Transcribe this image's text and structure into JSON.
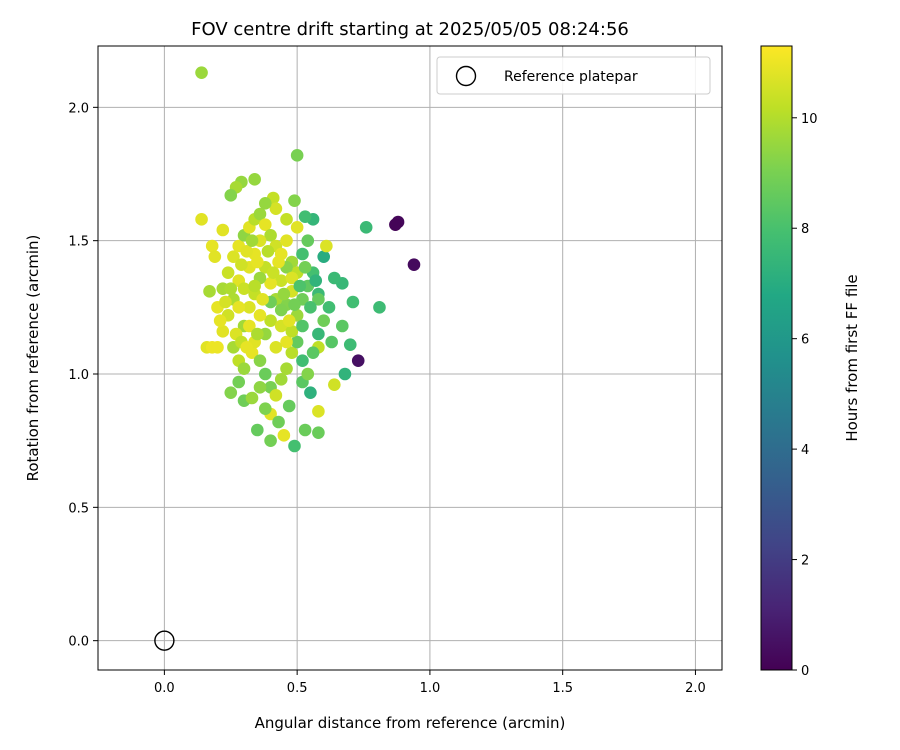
{
  "chart_data": {
    "type": "scatter",
    "title": "FOV centre drift starting at 2025/05/05 08:24:56",
    "xlabel": "Angular distance from reference (arcmin)",
    "ylabel": "Rotation from reference (arcmin)",
    "xlim": [
      -0.25,
      2.1
    ],
    "ylim": [
      -0.11,
      2.23
    ],
    "xticks": [
      "0.0",
      "0.5",
      "1.0",
      "1.5",
      "2.0"
    ],
    "yticks": [
      "0.0",
      "0.5",
      "1.0",
      "1.5",
      "2.0"
    ],
    "grid": true,
    "legend": {
      "placement": "top-right",
      "entries": [
        "Reference platepar"
      ]
    },
    "reference_point": {
      "x": 0.0,
      "y": 0.0
    },
    "colorbar": {
      "label": "Hours from first FF file",
      "range": [
        0,
        11.3
      ],
      "ticks": [
        "0",
        "2",
        "4",
        "6",
        "8",
        "10"
      ],
      "colormap": "viridis"
    },
    "points": [
      [
        0.14,
        2.13,
        9.6
      ],
      [
        0.5,
        1.82,
        9.0
      ],
      [
        0.14,
        1.58,
        10.8
      ],
      [
        0.88,
        1.57,
        0.2
      ],
      [
        0.87,
        1.56,
        0.1
      ],
      [
        0.76,
        1.55,
        7.6
      ],
      [
        0.94,
        1.41,
        0.3
      ],
      [
        0.73,
        1.05,
        0.5
      ],
      [
        0.81,
        1.25,
        7.7
      ],
      [
        0.71,
        1.27,
        7.8
      ],
      [
        0.67,
        1.34,
        7.5
      ],
      [
        0.64,
        1.36,
        7.6
      ],
      [
        0.6,
        1.44,
        7.0
      ],
      [
        0.61,
        1.48,
        10.7
      ],
      [
        0.56,
        1.58,
        7.4
      ],
      [
        0.53,
        1.59,
        7.8
      ],
      [
        0.49,
        1.65,
        9.2
      ],
      [
        0.41,
        1.66,
        10.3
      ],
      [
        0.34,
        1.73,
        9.5
      ],
      [
        0.29,
        1.72,
        9.5
      ],
      [
        0.27,
        1.7,
        9.8
      ],
      [
        0.25,
        1.67,
        9.2
      ],
      [
        0.22,
        1.54,
        10.8
      ],
      [
        0.18,
        1.48,
        10.9
      ],
      [
        0.19,
        1.44,
        10.8
      ],
      [
        0.17,
        1.31,
        9.8
      ],
      [
        0.16,
        1.1,
        10.8
      ],
      [
        0.18,
        1.1,
        11.0
      ],
      [
        0.2,
        1.1,
        11.0
      ],
      [
        0.25,
        0.93,
        9.2
      ],
      [
        0.28,
        0.97,
        8.9
      ],
      [
        0.3,
        0.9,
        8.8
      ],
      [
        0.33,
        0.91,
        9.6
      ],
      [
        0.35,
        0.79,
        8.6
      ],
      [
        0.4,
        0.75,
        8.9
      ],
      [
        0.4,
        0.85,
        10.8
      ],
      [
        0.45,
        0.77,
        10.9
      ],
      [
        0.49,
        0.73,
        7.9
      ],
      [
        0.53,
        0.79,
        8.7
      ],
      [
        0.58,
        0.78,
        8.7
      ],
      [
        0.58,
        0.86,
        10.7
      ],
      [
        0.55,
        0.93,
        7.2
      ],
      [
        0.52,
        0.97,
        8.4
      ],
      [
        0.64,
        0.96,
        10.5
      ],
      [
        0.68,
        1.0,
        7.3
      ],
      [
        0.7,
        1.11,
        7.7
      ],
      [
        0.67,
        1.18,
        8.4
      ],
      [
        0.63,
        1.12,
        8.3
      ],
      [
        0.58,
        1.1,
        10.2
      ],
      [
        0.6,
        1.2,
        8.8
      ],
      [
        0.62,
        1.25,
        7.8
      ],
      [
        0.58,
        1.3,
        7.6
      ],
      [
        0.56,
        1.38,
        7.9
      ],
      [
        0.58,
        1.28,
        8.6
      ],
      [
        0.54,
        1.33,
        8.5
      ],
      [
        0.52,
        1.28,
        8.8
      ],
      [
        0.5,
        1.22,
        9.6
      ],
      [
        0.48,
        1.31,
        10.6
      ],
      [
        0.46,
        1.26,
        9.2
      ],
      [
        0.44,
        1.35,
        10.4
      ],
      [
        0.42,
        1.28,
        9.8
      ],
      [
        0.4,
        1.2,
        10.2
      ],
      [
        0.38,
        1.15,
        9.5
      ],
      [
        0.36,
        1.22,
        10.9
      ],
      [
        0.34,
        1.3,
        10.3
      ],
      [
        0.32,
        1.25,
        10.7
      ],
      [
        0.3,
        1.18,
        9.7
      ],
      [
        0.28,
        1.35,
        10.8
      ],
      [
        0.26,
        1.28,
        9.9
      ],
      [
        0.24,
        1.22,
        10.5
      ],
      [
        0.22,
        1.16,
        10.8
      ],
      [
        0.2,
        1.25,
        10.9
      ],
      [
        0.22,
        1.32,
        9.8
      ],
      [
        0.24,
        1.38,
        10.4
      ],
      [
        0.26,
        1.44,
        10.7
      ],
      [
        0.28,
        1.48,
        10.9
      ],
      [
        0.3,
        1.52,
        9.4
      ],
      [
        0.32,
        1.55,
        10.8
      ],
      [
        0.34,
        1.58,
        10.1
      ],
      [
        0.36,
        1.6,
        9.6
      ],
      [
        0.38,
        1.56,
        10.9
      ],
      [
        0.4,
        1.52,
        9.9
      ],
      [
        0.42,
        1.48,
        10.5
      ],
      [
        0.44,
        1.45,
        10.9
      ],
      [
        0.46,
        1.5,
        10.8
      ],
      [
        0.48,
        1.42,
        9.7
      ],
      [
        0.5,
        1.38,
        10.2
      ],
      [
        0.52,
        1.45,
        7.9
      ],
      [
        0.54,
        1.5,
        8.6
      ],
      [
        0.5,
        1.55,
        10.8
      ],
      [
        0.46,
        1.58,
        10.3
      ],
      [
        0.42,
        1.62,
        10.6
      ],
      [
        0.38,
        1.64,
        9.5
      ],
      [
        0.36,
        1.5,
        10.7
      ],
      [
        0.34,
        1.45,
        10.9
      ],
      [
        0.32,
        1.4,
        10.8
      ],
      [
        0.3,
        1.32,
        10.4
      ],
      [
        0.28,
        1.25,
        10.9
      ],
      [
        0.26,
        1.1,
        9.8
      ],
      [
        0.28,
        1.05,
        10.2
      ],
      [
        0.3,
        1.02,
        9.6
      ],
      [
        0.33,
        1.08,
        10.9
      ],
      [
        0.36,
        1.05,
        9.3
      ],
      [
        0.38,
        1.0,
        8.7
      ],
      [
        0.4,
        0.95,
        9.0
      ],
      [
        0.42,
        0.92,
        10.5
      ],
      [
        0.44,
        0.98,
        9.7
      ],
      [
        0.46,
        1.02,
        9.8
      ],
      [
        0.48,
        1.08,
        10.1
      ],
      [
        0.5,
        1.12,
        8.6
      ],
      [
        0.52,
        1.05,
        7.8
      ],
      [
        0.54,
        1.0,
        9.2
      ],
      [
        0.56,
        1.08,
        8.4
      ],
      [
        0.58,
        1.15,
        7.5
      ],
      [
        0.47,
        0.88,
        8.6
      ],
      [
        0.43,
        0.82,
        8.8
      ],
      [
        0.38,
        0.87,
        9.1
      ],
      [
        0.36,
        0.95,
        9.4
      ],
      [
        0.34,
        1.12,
        10.8
      ],
      [
        0.32,
        1.18,
        10.9
      ],
      [
        0.44,
        1.18,
        10.6
      ],
      [
        0.46,
        1.12,
        10.9
      ],
      [
        0.48,
        1.16,
        10.2
      ],
      [
        0.42,
        1.1,
        10.7
      ],
      [
        0.4,
        1.34,
        10.9
      ],
      [
        0.38,
        1.4,
        10.3
      ],
      [
        0.36,
        1.36,
        9.6
      ],
      [
        0.34,
        1.33,
        10.1
      ],
      [
        0.46,
        1.4,
        9.3
      ],
      [
        0.48,
        1.36,
        10.7
      ],
      [
        0.21,
        1.2,
        10.9
      ],
      [
        0.23,
        1.27,
        10.6
      ],
      [
        0.25,
        1.32,
        9.9
      ],
      [
        0.29,
        1.41,
        10.5
      ],
      [
        0.31,
        1.46,
        10.8
      ],
      [
        0.33,
        1.5,
        9.7
      ],
      [
        0.4,
        1.27,
        8.8
      ],
      [
        0.44,
        1.24,
        9.1
      ],
      [
        0.52,
        1.18,
        8.2
      ],
      [
        0.55,
        1.25,
        8.0
      ],
      [
        0.57,
        1.35,
        7.3
      ],
      [
        0.53,
        1.4,
        8.9
      ],
      [
        0.43,
        1.42,
        10.9
      ],
      [
        0.39,
        1.46,
        10.1
      ],
      [
        0.35,
        1.42,
        10.9
      ],
      [
        0.27,
        1.15,
        10.7
      ],
      [
        0.29,
        1.12,
        10.3
      ],
      [
        0.31,
        1.1,
        10.9
      ],
      [
        0.35,
        1.15,
        9.9
      ],
      [
        0.37,
        1.28,
        10.8
      ],
      [
        0.41,
        1.38,
        10.4
      ],
      [
        0.45,
        1.3,
        9.5
      ],
      [
        0.49,
        1.26,
        8.9
      ],
      [
        0.51,
        1.33,
        8.1
      ],
      [
        0.47,
        1.2,
        10.8
      ]
    ]
  }
}
